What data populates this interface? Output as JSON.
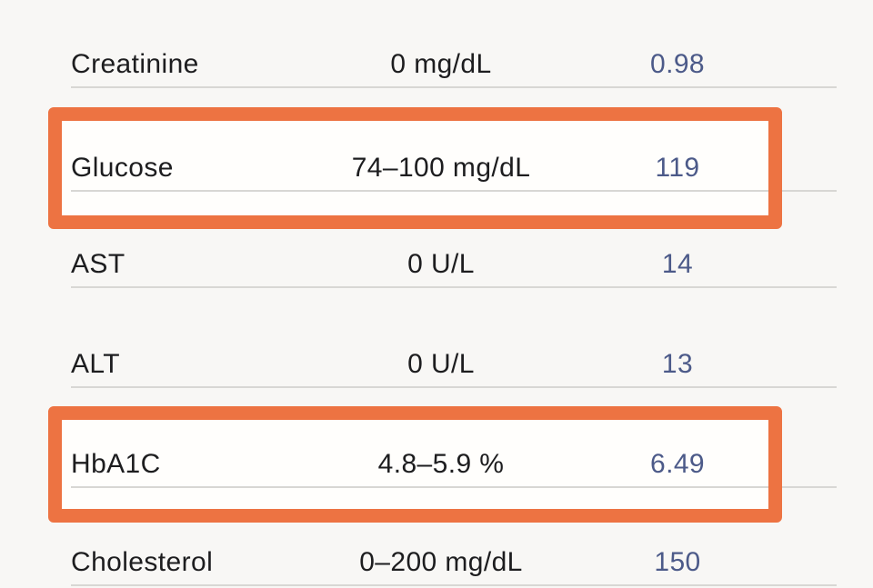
{
  "page": {
    "background_color": "#f8f7f5",
    "text_color": "#1d1d1f",
    "value_color": "#4C5A89",
    "divider_color": "#d8d7d4",
    "highlight_border_color": "#ED7342",
    "highlight_fill_color": "#fffefc"
  },
  "lab_results": {
    "type": "table",
    "rows": [
      {
        "test": "Creatinine",
        "range": "0 mg/dL",
        "value": "0.98",
        "highlighted": false
      },
      {
        "test": "Glucose",
        "range": "74–100 mg/dL",
        "value": "119",
        "highlighted": true
      },
      {
        "test": "AST",
        "range": "0 U/L",
        "value": "14",
        "highlighted": false
      },
      {
        "test": "ALT",
        "range": "0 U/L",
        "value": "13",
        "highlighted": false
      },
      {
        "test": "HbA1C",
        "range": "4.8–5.9 %",
        "value": "6.49",
        "highlighted": true
      },
      {
        "test": "Cholesterol",
        "range": "0–200 mg/dL",
        "value": "150",
        "highlighted": false
      }
    ]
  }
}
